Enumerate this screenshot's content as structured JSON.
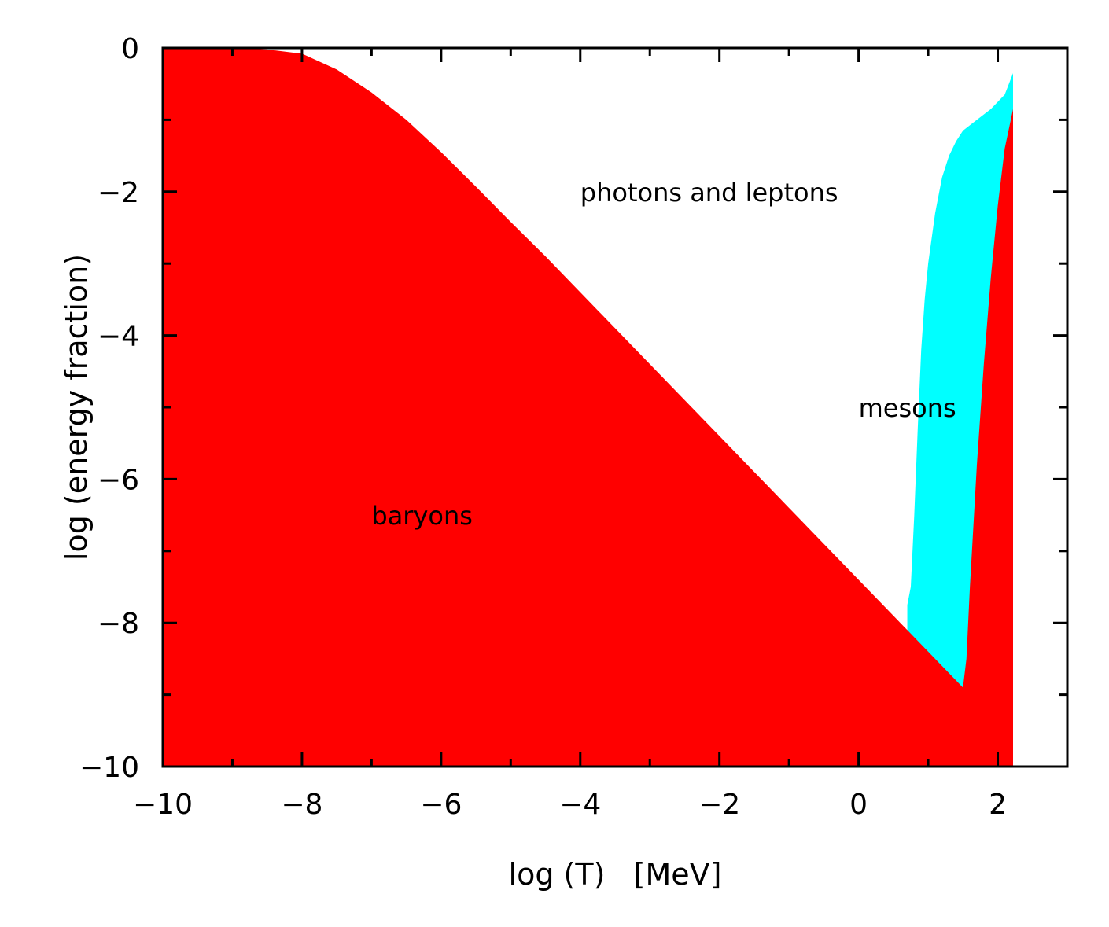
{
  "chart_data": {
    "type": "area",
    "xlabel": "log (T)   [MeV]",
    "ylabel": "log (energy fraction)",
    "xlim": [
      -10,
      3
    ],
    "ylim": [
      -10,
      0
    ],
    "x_ticks": [
      -10,
      -8,
      -6,
      -4,
      -2,
      0,
      2
    ],
    "y_ticks": [
      0,
      -2,
      -4,
      -6,
      -8,
      -10
    ],
    "x_tick_labels": [
      "−10",
      "−8",
      "−6",
      "−4",
      "−2",
      "0",
      "2"
    ],
    "y_tick_labels": [
      "0",
      "−2",
      "−4",
      "−6",
      "−8",
      "−10"
    ],
    "grid": false,
    "colors": {
      "baryons": "#ff0000",
      "mesons": "#00ffff",
      "background": "#ffffff",
      "axes": "#000000"
    },
    "series": [
      {
        "name": "baryons",
        "x": [
          -10,
          -9,
          -8.5,
          -8,
          -7.5,
          -7,
          -6.5,
          -6,
          -5.5,
          -5,
          -4.5,
          -4,
          -3,
          -2,
          -1.5,
          -1.2,
          -1,
          0,
          0.75,
          1,
          1.5,
          1.55,
          1.6,
          1.7,
          1.8,
          1.9,
          2.0,
          2.1,
          2.22
        ],
        "y": [
          0,
          0,
          -0.02,
          -0.08,
          -0.3,
          -0.62,
          -1.0,
          -1.45,
          -1.93,
          -2.42,
          -2.9,
          -3.4,
          -4.4,
          -5.4,
          -5.9,
          -6.2,
          -6.4,
          -7.4,
          -8.15,
          -8.4,
          -8.9,
          -8.5,
          -7.5,
          -5.8,
          -4.4,
          -3.2,
          -2.2,
          -1.4,
          -0.85
        ]
      },
      {
        "name": "mesons",
        "x": [
          0.7,
          0.75,
          0.8,
          0.85,
          0.9,
          0.95,
          1.0,
          1.1,
          1.2,
          1.3,
          1.4,
          1.5,
          1.7,
          1.9,
          2.1,
          2.22
        ],
        "y": [
          -7.75,
          -7.5,
          -6.5,
          -5.3,
          -4.2,
          -3.5,
          -3.0,
          -2.3,
          -1.8,
          -1.5,
          -1.3,
          -1.15,
          -1.0,
          -0.85,
          -0.65,
          -0.35
        ]
      }
    ],
    "annotations": [
      {
        "text": "photons and leptons",
        "x": -4.0,
        "y": -2.0
      },
      {
        "text": "mesons",
        "x": 0.0,
        "y": -5.0
      },
      {
        "text": "baryons",
        "x": -7.0,
        "y": -6.5
      }
    ]
  }
}
